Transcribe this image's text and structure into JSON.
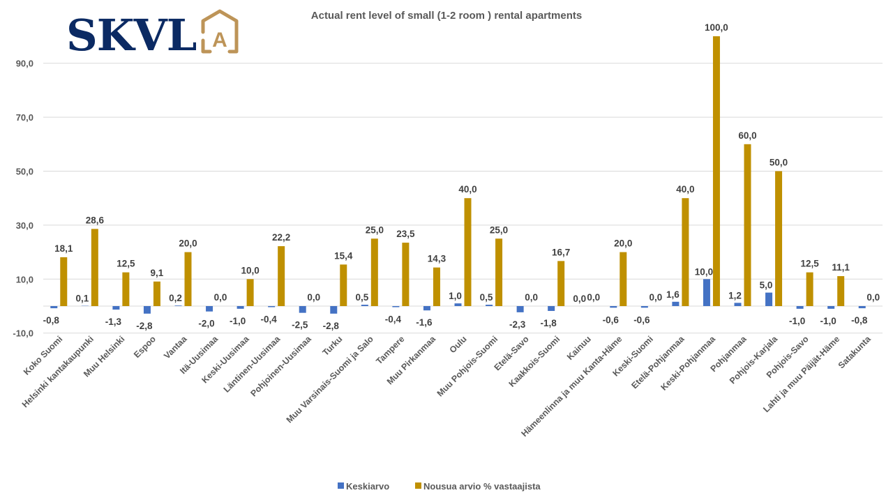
{
  "logo": {
    "text": "SKVL",
    "mark_letter": "A",
    "text_color": "#0b2a63",
    "mark_color": "#bd9458"
  },
  "chart_data": {
    "type": "bar",
    "title": "Actual rent level of small (1-2 room ) rental apartments",
    "xlabel": "",
    "ylabel": "",
    "ylim": [
      -10,
      100
    ],
    "yticks": [
      -10,
      10,
      30,
      50,
      70,
      90
    ],
    "ytick_labels": [
      "-10,0",
      "10,0",
      "30,0",
      "50,0",
      "70,0",
      "90,0"
    ],
    "grid": true,
    "legend_position": "bottom",
    "categories": [
      "Koko Suomi",
      "Helsinki kantakaupunki",
      "Muu Helsinki",
      "Espoo",
      "Vantaa",
      "Itä-Uusimaa",
      "Keski-Uusimaa",
      "Läntinen-Uusimaa",
      "Pohjoinen-Uusimaa",
      "Turku",
      "Muu Varsinais-Suomi ja Salo",
      "Tampere",
      "Muu Pirkanmaa",
      "Oulu",
      "Muu Pohjois-Suomi",
      "Etelä-Savo",
      "Kaakkois-Suomi",
      "Kainuu",
      "Hämeenlinna ja muu Kanta-Häme",
      "Keski-Suomi",
      "Etelä-Pohjanmaa",
      "Keski-Pohjanmaa",
      "Pohjanmaa",
      "Pohjois-Karjala",
      "Pohjois-Savo",
      "Lahti ja muu Päijät-Häme",
      "Satakunta"
    ],
    "series": [
      {
        "name": "Keskiarvo",
        "color": "#4472c4",
        "values": [
          -0.8,
          0.1,
          -1.3,
          -2.8,
          0.2,
          -2.0,
          -1.0,
          -0.4,
          -2.5,
          -2.8,
          0.5,
          -0.4,
          -1.6,
          1.0,
          0.5,
          -2.3,
          -1.8,
          0.0,
          -0.6,
          -0.6,
          1.6,
          10.0,
          1.2,
          5.0,
          -1.0,
          -1.0,
          -0.8
        ],
        "labels": [
          "-0,8",
          "0,1",
          "-1,3",
          "-2,8",
          "0,2",
          "-2,0",
          "-1,0",
          "-0,4",
          "-2,5",
          "-2,8",
          "0,5",
          "-0,4",
          "-1,6",
          "1,0",
          "0,5",
          "-2,3",
          "-1,8",
          "0,0",
          "-0,6",
          "-0,6",
          "1,6",
          "10,0",
          "1,2",
          "5,0",
          "-1,0",
          "-1,0",
          "-0,8"
        ]
      },
      {
        "name": "Nousua arvio % vastaajista",
        "color": "#bf9000",
        "values": [
          18.1,
          28.6,
          12.5,
          9.1,
          20.0,
          0.0,
          10.0,
          22.2,
          0.0,
          15.4,
          25.0,
          23.5,
          14.3,
          40.0,
          25.0,
          0.0,
          16.7,
          0.0,
          20.0,
          0.0,
          40.0,
          100.0,
          60.0,
          50.0,
          12.5,
          11.1,
          0.0
        ],
        "labels": [
          "18,1",
          "28,6",
          "12,5",
          "9,1",
          "20,0",
          "0,0",
          "10,0",
          "22,2",
          "0,0",
          "15,4",
          "25,0",
          "23,5",
          "14,3",
          "40,0",
          "25,0",
          "0,0",
          "16,7",
          "0,0",
          "20,0",
          "0,0",
          "40,0",
          "100,0",
          "60,0",
          "50,0",
          "12,5",
          "11,1",
          "0,0"
        ]
      }
    ]
  }
}
